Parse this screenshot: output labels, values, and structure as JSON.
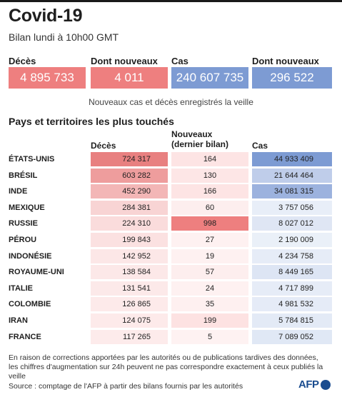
{
  "header": {
    "title": "Covid-19",
    "subtitle": "Bilan lundi à 10h00 GMT"
  },
  "summary": {
    "deaths_label": "Décès",
    "deaths_value": "4 895 733",
    "new_deaths_label": "Dont nouveaux",
    "new_deaths_value": "4 011",
    "cases_label": "Cas",
    "cases_value": "240 607 735",
    "new_cases_label": "Dont nouveaux",
    "new_cases_value": "296 522",
    "note": "Nouveaux cas et décès enregistrés la veille"
  },
  "table": {
    "section_title": "Pays et territoires les plus touchés",
    "col_deaths": "Décès",
    "col_new_line1": "Nouveaux",
    "col_new_line2": "(dernier bilan)",
    "col_cases": "Cas",
    "rows": [
      {
        "country": "ÉTATS-UNIS",
        "deaths": "724 317",
        "new": "164",
        "cases": "44 933 409",
        "dc": "#e88080",
        "nc": "#fde4e4",
        "cc": "#7d9bd3"
      },
      {
        "country": "BRÉSIL",
        "deaths": "603 282",
        "new": "130",
        "cases": "21 644 464",
        "dc": "#ee9d9d",
        "nc": "#fde6e6",
        "cc": "#bfcdea"
      },
      {
        "country": "INDE",
        "deaths": "452 290",
        "new": "166",
        "cases": "34 081 315",
        "dc": "#f3b6b6",
        "nc": "#fde4e4",
        "cc": "#9cb2de"
      },
      {
        "country": "MEXIQUE",
        "deaths": "284 381",
        "new": "60",
        "cases": "3 757 056",
        "dc": "#f8d4d4",
        "nc": "#fdeeee",
        "cc": "#e8eef8"
      },
      {
        "country": "RUSSIE",
        "deaths": "224 310",
        "new": "998",
        "cases": "8 027 012",
        "dc": "#fadcdc",
        "nc": "#ee7f7f",
        "cc": "#dfe6f4"
      },
      {
        "country": "PÉROU",
        "deaths": "199 843",
        "new": "27",
        "cases": "2 190 009",
        "dc": "#fbe1e1",
        "nc": "#fef1f1",
        "cc": "#eaf0f8"
      },
      {
        "country": "INDONÉSIE",
        "deaths": "142 952",
        "new": "19",
        "cases": "4 234 758",
        "dc": "#fce7e7",
        "nc": "#fef1f1",
        "cc": "#e6ecf7"
      },
      {
        "country": "ROYAUME-UNI",
        "deaths": "138 584",
        "new": "57",
        "cases": "8 449 165",
        "dc": "#fce8e8",
        "nc": "#fdeeee",
        "cc": "#dde5f4"
      },
      {
        "country": "ITALIE",
        "deaths": "131 541",
        "new": "24",
        "cases": "4 717 899",
        "dc": "#fce9e9",
        "nc": "#fef1f1",
        "cc": "#e6ecf7"
      },
      {
        "country": "COLOMBIE",
        "deaths": "126 865",
        "new": "35",
        "cases": "4 981 532",
        "dc": "#fdeaea",
        "nc": "#fef0f0",
        "cc": "#e5ebf7"
      },
      {
        "country": "IRAN",
        "deaths": "124 075",
        "new": "199",
        "cases": "5 784 815",
        "dc": "#fdeaea",
        "nc": "#fde2e2",
        "cc": "#e3eaf6"
      },
      {
        "country": "FRANCE",
        "deaths": "117 265",
        "new": "5",
        "cases": "7 089 052",
        "dc": "#fdebeb",
        "nc": "#fef2f2",
        "cc": "#e0e8f5"
      }
    ]
  },
  "footer": {
    "footnote_line1": "En raison de corrections apportées par les autorités ou de publications tardives des données,",
    "footnote_line2": "les chiffres d'augmentation sur 24h peuvent ne pas correspondre exactement à ceux publiés la veille",
    "source": "Source : comptage de l'AFP à partir des bilans fournis par les autorités",
    "logo_text": "AFP"
  },
  "colors": {
    "red_accent": "#ee7f7f",
    "blue_accent": "#7d9bd3",
    "logo_blue": "#1a4c8f"
  }
}
